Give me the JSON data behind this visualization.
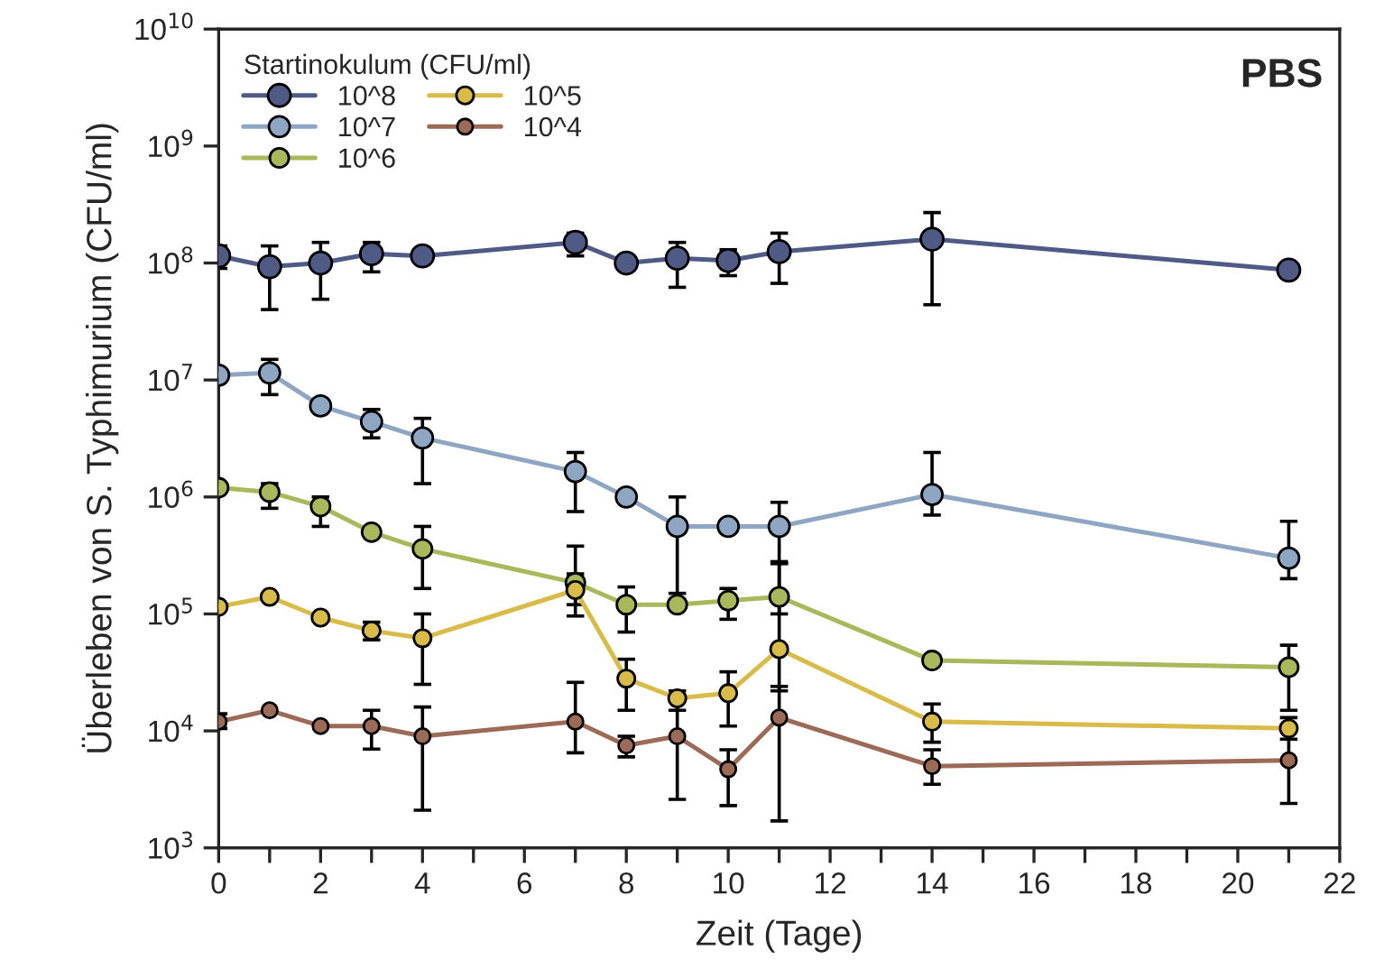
{
  "chart_data": {
    "type": "line",
    "xlabel": "Zeit (Tage)",
    "ylabel": "Überleben von S. Typhimurium (CFU/ml)",
    "legend_title": "Startinokulum (CFU/ml)",
    "annotations": [
      "PBS"
    ],
    "log": "y",
    "grid": false,
    "legend": "top left",
    "marker": "circle",
    "line_style": "solid",
    "xlim": [
      0,
      22
    ],
    "ylim": [
      1000,
      10000000000
    ],
    "xticks": [
      0,
      {
        "value": 1,
        "label": null
      },
      2,
      {
        "value": 3,
        "label": null
      },
      4,
      {
        "value": 5,
        "label": null
      },
      6,
      {
        "value": 7,
        "label": null
      },
      8,
      {
        "value": 9,
        "label": null
      },
      10,
      {
        "value": 11,
        "label": null
      },
      12,
      {
        "value": 13,
        "label": null
      },
      14,
      {
        "value": 15,
        "label": null
      },
      16,
      {
        "value": 17,
        "label": null
      },
      18,
      {
        "value": 19,
        "label": null
      },
      20,
      {
        "value": 21,
        "label": null
      },
      22
    ],
    "yticks": [
      {
        "value": 1000,
        "label": "10$^{3}$"
      },
      {
        "value": 10000,
        "label": "10$^{4}$"
      },
      {
        "value": 100000,
        "label": "10$^{5}$"
      },
      {
        "value": 1000000,
        "label": "10$^{6}$"
      },
      {
        "value": 10000000,
        "label": "10$^{7}$"
      },
      {
        "value": 100000000,
        "label": "10$^{8}$"
      },
      {
        "value": 1000000000,
        "label": "10$^{9}$"
      },
      {
        "value": 10000000000,
        "label": "10$^{10}$"
      }
    ],
    "x": [
      0,
      1,
      2,
      3,
      4,
      7,
      8,
      9,
      10,
      11,
      14,
      21
    ],
    "series": [
      {
        "name": "10^8",
        "color": "#4f5a85",
        "values": [
          115000000.0,
          93000000.0,
          100000000.0,
          120000000.0,
          115000000.0,
          150000000.0,
          100000000.0,
          110000000.0,
          105000000.0,
          125000000.0,
          160000000.0,
          87000000.0
        ],
        "errors": [
          [
            90000000.0,
            140000000.0
          ],
          [
            40000000.0,
            140000000.0
          ],
          [
            49000000.0,
            150000000.0
          ],
          [
            84000000.0,
            150000000.0
          ],
          null,
          [
            115000000.0,
            180000000.0
          ],
          null,
          [
            62000000.0,
            150000000.0
          ],
          [
            78000000.0,
            130000000.0
          ],
          [
            67000000.0,
            180000000.0
          ],
          [
            44000000.0,
            270000000.0
          ],
          null
        ]
      },
      {
        "name": "10^7",
        "color": "#8fa6c2",
        "values": [
          11000000.0,
          11500000.0,
          6000000.0,
          4400000.0,
          3200000.0,
          1650000.0,
          1000000.0,
          560000.0,
          560000.0,
          560000.0,
          1050000.0,
          300000.0
        ],
        "errors": [
          null,
          [
            7500000.0,
            15000000.0
          ],
          null,
          [
            3200000.0,
            5600000.0
          ],
          [
            1300000.0,
            4700000.0
          ],
          [
            750000.0,
            2400000.0
          ],
          null,
          [
            150000.0,
            1000000.0
          ],
          null,
          [
            280000.0,
            900000.0
          ],
          [
            700000.0,
            2400000.0
          ],
          [
            200000.0,
            620000.0
          ]
        ]
      },
      {
        "name": "10^6",
        "color": "#a8b85a",
        "values": [
          1200000.0,
          1100000.0,
          830000.0,
          500000.0,
          360000.0,
          185000.0,
          120000.0,
          120000.0,
          130000.0,
          140000.0,
          40000.0,
          35000.0
        ],
        "errors": [
          null,
          [
            800000.0,
            1300000.0
          ],
          [
            560000.0,
            1000000.0
          ],
          null,
          [
            165000.0,
            560000.0
          ],
          [
            96000.0,
            380000.0
          ],
          [
            70000.0,
            170000.0
          ],
          null,
          [
            90000.0,
            165000.0
          ],
          [
            100000.0,
            270000.0
          ],
          null,
          [
            15000.0,
            54000.0
          ]
        ]
      },
      {
        "name": "10^5",
        "color": "#d9bb4a",
        "values": [
          115000.0,
          140000.0,
          93000.0,
          72000.0,
          62000.0,
          160000.0,
          28000.0,
          19000.0,
          21000.0,
          50000.0,
          12000.0,
          10500.0
        ],
        "errors": [
          null,
          null,
          null,
          [
            60000.0,
            85000.0
          ],
          [
            25000.0,
            100000.0
          ],
          [
            120000.0,
            220000.0
          ],
          [
            15000.0,
            41000.0
          ],
          [
            15000.0,
            22000.0
          ],
          [
            11000.0,
            32000.0
          ],
          [
            22000.0,
            270000.0
          ],
          [
            8000.0,
            17000.0
          ],
          [
            8500.0,
            13000.0
          ]
        ]
      },
      {
        "name": "10^4",
        "color": "#9b6b58",
        "values": [
          12000.0,
          15000.0,
          11000.0,
          11000.0,
          9000.0,
          12000.0,
          7500.0,
          9000.0,
          4700.0,
          13000.0,
          5000.0,
          5600.0
        ],
        "errors": [
          [
            10500.0,
            14000.0
          ],
          null,
          null,
          [
            7000.0,
            15000.0
          ],
          [
            2100.0,
            16000.0
          ],
          [
            6500.0,
            26000.0
          ],
          [
            6000.0,
            9000.0
          ],
          [
            2600.0,
            20000.0
          ],
          [
            2300.0,
            6900.0
          ],
          [
            1700.0,
            24000.0
          ],
          [
            3500.0,
            6900.0
          ],
          [
            2400.0,
            11000.0
          ]
        ]
      }
    ]
  }
}
